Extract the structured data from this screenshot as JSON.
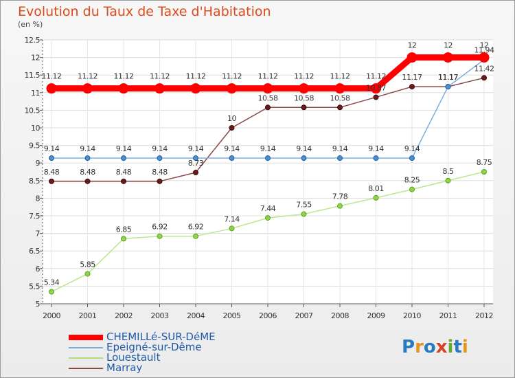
{
  "title": "Evolution du Taux de Taxe d'Habitation",
  "unit_label": "(en %)",
  "logo": {
    "text": "Proxiti",
    "letters": [
      "P",
      "r",
      "o",
      "x",
      "i",
      "t",
      "i"
    ],
    "colors": [
      "#2a7ac0",
      "#e8941c",
      "#2a7ac0",
      "#d9402a",
      "#6aa834",
      "#2a7ac0",
      "#e8941c"
    ]
  },
  "chart_data": {
    "type": "line",
    "title": "Evolution du Taux de Taxe d'Habitation",
    "ylabel": "(en %)",
    "ylim": [
      5,
      12.5
    ],
    "yticks": [
      "5",
      "5.5",
      "6",
      "6.5",
      "7",
      "7.5",
      "8",
      "8.5",
      "9",
      "9.5",
      "10",
      "10.5",
      "11",
      "11.5",
      "12",
      "12.5"
    ],
    "x": [
      "2000",
      "2001",
      "2002",
      "2003",
      "2004",
      "2005",
      "2006",
      "2007",
      "2008",
      "2009",
      "2010",
      "2011",
      "2012"
    ],
    "grid": true,
    "series": [
      {
        "name": "CHEMILLé-SUR-DéME",
        "color": "#ff0000",
        "values": [
          11.12,
          11.12,
          11.12,
          11.12,
          11.12,
          11.12,
          11.12,
          11.12,
          11.12,
          11.12,
          12,
          12,
          12
        ],
        "labels": [
          "11.12",
          "11.12",
          "11.12",
          "11.12",
          "11.12",
          "11.12",
          "11.12",
          "11.12",
          "11.12",
          "11.12",
          "12",
          "12",
          "12"
        ]
      },
      {
        "name": "Epeigné-sur-Dême",
        "color": "#4a8fd0",
        "values": [
          9.14,
          9.14,
          9.14,
          9.14,
          9.14,
          9.14,
          9.14,
          9.14,
          9.14,
          9.14,
          9.14,
          11.17,
          11.94
        ],
        "labels": [
          "9.14",
          "9.14",
          "9.14",
          "9.14",
          "9.14",
          "9.14",
          "9.14",
          "9.14",
          "9.14",
          "9.14",
          "9.14",
          "11.17",
          "11.94"
        ]
      },
      {
        "name": "Louestault",
        "color": "#8fd44a",
        "values": [
          5.34,
          5.85,
          6.85,
          6.92,
          6.92,
          7.14,
          7.44,
          7.55,
          7.78,
          8.01,
          8.25,
          8.5,
          8.75
        ],
        "labels": [
          "5.34",
          "5.85",
          "6.85",
          "6.92",
          "6.92",
          "7.14",
          "7.44",
          "7.55",
          "7.78",
          "8.01",
          "8.25",
          "8.5",
          "8.75"
        ]
      },
      {
        "name": "Marray",
        "color": "#6a1a1a",
        "values": [
          8.48,
          8.48,
          8.48,
          8.48,
          8.73,
          10,
          10.58,
          10.58,
          10.58,
          10.87,
          11.17,
          11.17,
          11.42
        ],
        "labels": [
          "8.48",
          "8.48",
          "8.48",
          "8.48",
          "8.73",
          "10",
          "10.58",
          "10.58",
          "10.58",
          "10.87",
          "11.17",
          "11.17",
          "11.42"
        ]
      }
    ]
  }
}
